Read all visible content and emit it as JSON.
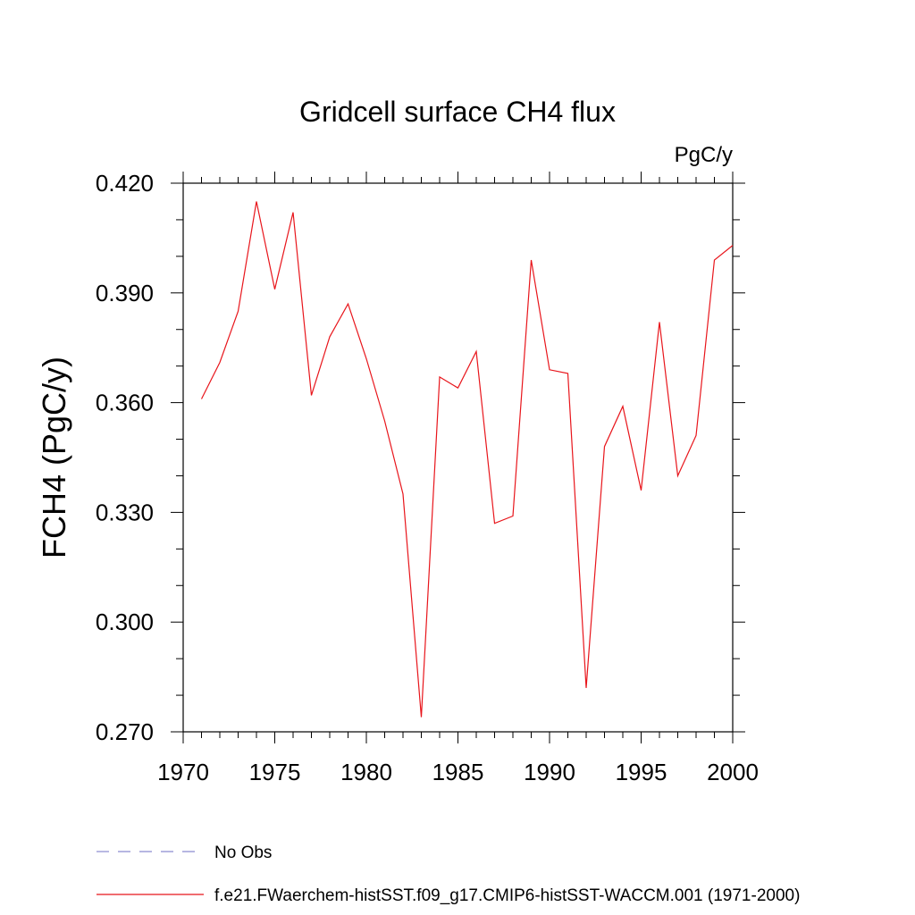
{
  "chart_data": {
    "type": "line",
    "title": "Gridcell surface CH4 flux",
    "units": "PgC/y",
    "ylabel": "FCH4  (PgC/y)",
    "xlabel": "",
    "xlim": [
      1970,
      2000
    ],
    "ylim": [
      0.27,
      0.42
    ],
    "xticks": [
      1970,
      1975,
      1980,
      1985,
      1990,
      1995,
      2000
    ],
    "yticks": [
      "0.270",
      "0.300",
      "0.330",
      "0.360",
      "0.390",
      "0.420"
    ],
    "legend_position": "bottom-left",
    "series": [
      {
        "name": "f.e21.FWaerchem-histSST.f09_g17.CMIP6-histSST-WACCM.001 (1971-2000)",
        "color": "#e8151b",
        "dash": "solid",
        "x": [
          1971,
          1972,
          1973,
          1974,
          1975,
          1976,
          1977,
          1978,
          1979,
          1980,
          1981,
          1982,
          1983,
          1984,
          1985,
          1986,
          1987,
          1988,
          1989,
          1990,
          1991,
          1992,
          1993,
          1994,
          1995,
          1996,
          1997,
          1998,
          1999,
          2000
        ],
        "y": [
          0.361,
          0.371,
          0.385,
          0.415,
          0.391,
          0.412,
          0.362,
          0.378,
          0.387,
          0.372,
          0.355,
          0.335,
          0.274,
          0.367,
          0.364,
          0.374,
          0.327,
          0.329,
          0.399,
          0.369,
          0.368,
          0.282,
          0.348,
          0.359,
          0.336,
          0.382,
          0.34,
          0.351,
          0.399,
          0.403
        ]
      },
      {
        "name": "No Obs",
        "color": "#8a8ad0",
        "dash": "dashed",
        "x": [],
        "y": []
      }
    ]
  }
}
